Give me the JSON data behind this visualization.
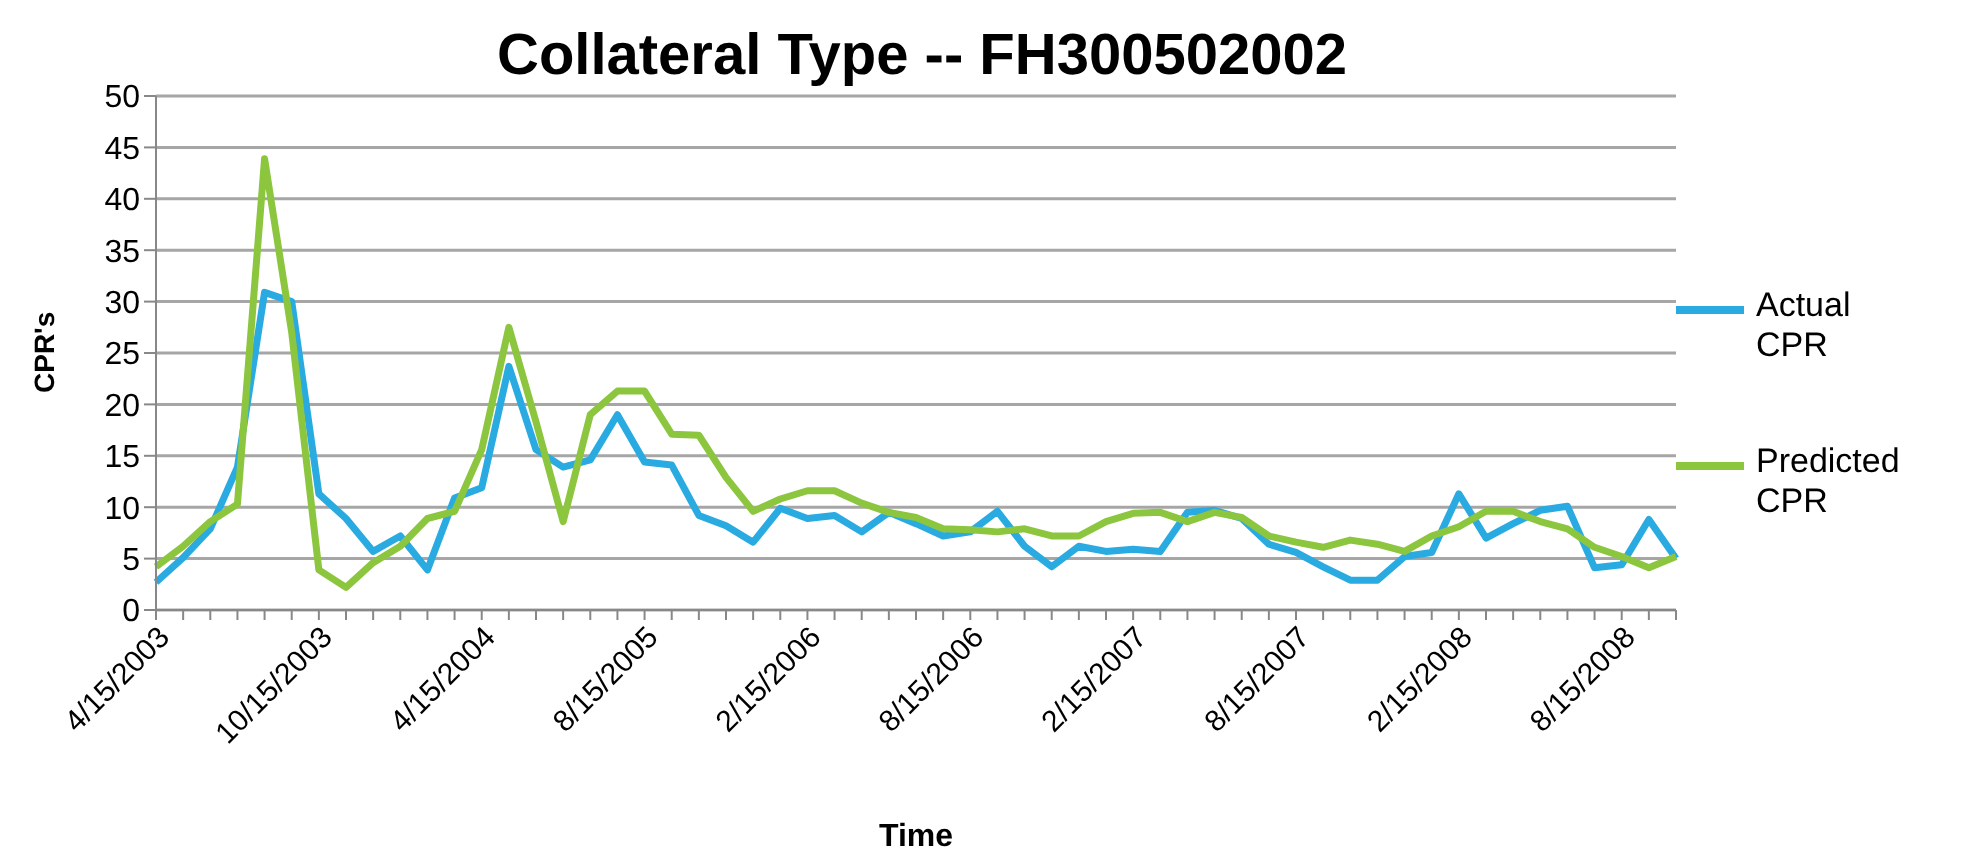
{
  "chart_data": {
    "type": "line",
    "title": "Collateral Type -- FH300502002",
    "xlabel": "Time",
    "ylabel": "CPR's",
    "categories": [
      "4/15/2003",
      null,
      null,
      null,
      null,
      null,
      "10/15/2003",
      null,
      null,
      null,
      null,
      null,
      "4/15/2004",
      null,
      null,
      null,
      null,
      null,
      "8/15/2005",
      null,
      null,
      null,
      null,
      null,
      "2/15/2006",
      null,
      null,
      null,
      null,
      null,
      "8/15/2006",
      null,
      null,
      null,
      null,
      null,
      "2/15/2007",
      null,
      null,
      null,
      null,
      null,
      "8/15/2007",
      null,
      null,
      null,
      null,
      null,
      "2/15/2008",
      null,
      null,
      null,
      null,
      null,
      "8/15/2008",
      null,
      null
    ],
    "series": [
      {
        "name": "Actual CPR",
        "color": "#29abe2",
        "values": [
          2.7,
          5.1,
          7.9,
          13.9,
          30.9,
          30.0,
          11.3,
          8.9,
          5.7,
          7.2,
          3.9,
          10.9,
          11.9,
          23.7,
          15.6,
          13.9,
          14.6,
          19.0,
          14.4,
          14.1,
          9.2,
          8.2,
          6.6,
          9.9,
          8.9,
          9.2,
          7.6,
          9.5,
          8.4,
          7.2,
          7.6,
          9.6,
          6.2,
          4.2,
          6.2,
          5.7,
          5.9,
          5.7,
          9.5,
          9.7,
          8.9,
          6.4,
          5.6,
          4.2,
          2.9,
          2.9,
          5.2,
          5.6,
          11.3,
          7.0,
          8.4,
          9.7,
          10.1,
          4.1,
          4.4,
          8.8,
          5.0
        ]
      },
      {
        "name": "Predicted CPR",
        "color": "#8cc63f",
        "values": [
          4.2,
          6.2,
          8.6,
          10.3,
          43.9,
          27,
          3.9,
          2.2,
          4.6,
          6.2,
          8.9,
          9.6,
          15.6,
          27.5,
          18.3,
          8.6,
          19.0,
          21.3,
          21.3,
          17.1,
          17.0,
          12.9,
          9.6,
          10.8,
          11.6,
          11.6,
          10.4,
          9.5,
          9.0,
          7.9,
          7.8,
          7.6,
          7.9,
          7.2,
          7.2,
          8.6,
          9.4,
          9.5,
          8.6,
          9.5,
          9.0,
          7.2,
          6.6,
          6.1,
          6.8,
          6.4,
          5.7,
          7.2,
          8.1,
          9.6,
          9.6,
          8.6,
          7.9,
          6.1,
          5.2,
          4.1,
          5.2
        ]
      }
    ],
    "ylim": [
      0,
      50
    ],
    "yticks": [
      0,
      5,
      10,
      15,
      20,
      25,
      30,
      35,
      40,
      45,
      50
    ],
    "grid": "y",
    "legend": "right"
  }
}
